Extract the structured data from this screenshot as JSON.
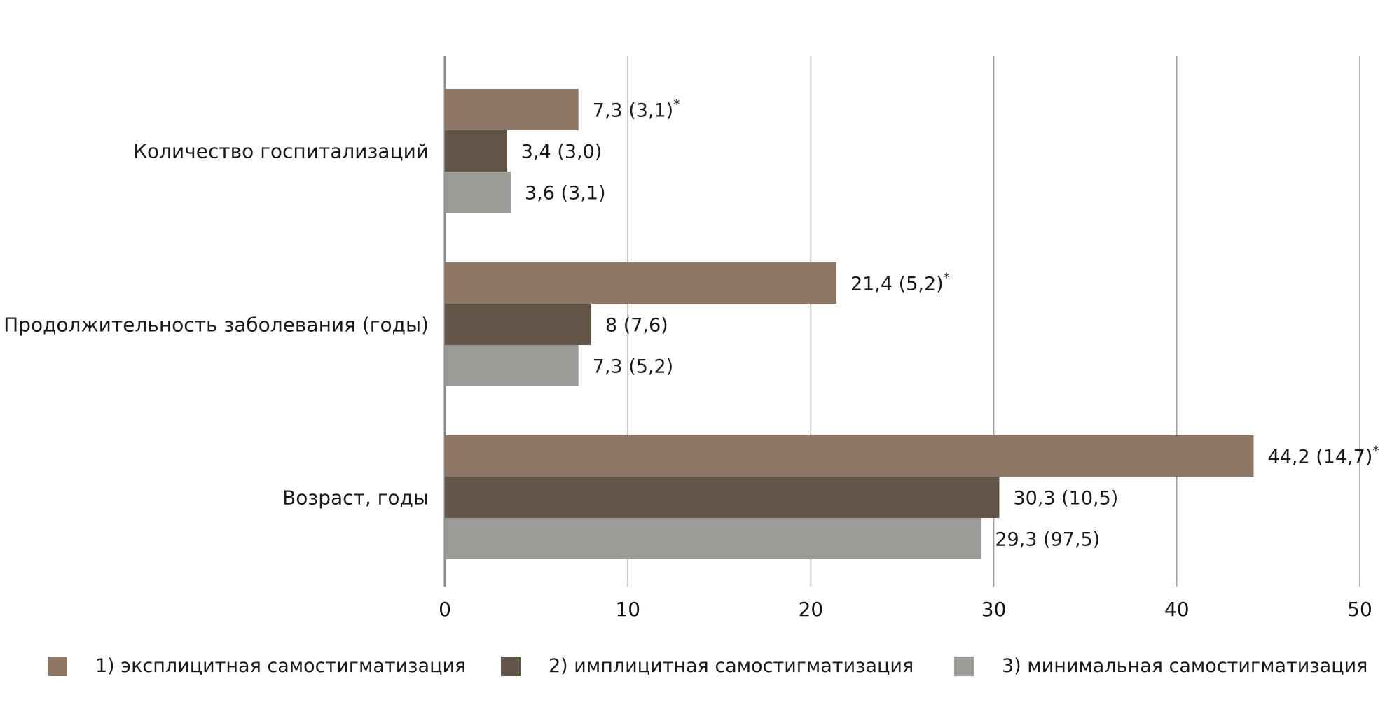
{
  "chart_data": {
    "type": "bar",
    "orientation": "horizontal",
    "categories": [
      "Количество госпитализаций",
      "Продолжительность заболевания (годы)",
      "Возраст, годы"
    ],
    "series": [
      {
        "name": "1) эксплицитная самостигматизация",
        "color": "#8e7765",
        "values": [
          7.3,
          21.4,
          44.2
        ],
        "labels": [
          "7,3 (3,1)",
          "21,4 (5,2)",
          "44,2 (14,7)"
        ],
        "marks": [
          "*",
          "*",
          "*"
        ]
      },
      {
        "name": "2) имплицитная самостигматизация",
        "color": "#625547",
        "values": [
          3.4,
          8,
          30.3
        ],
        "labels": [
          "3,4 (3,0)",
          "8 (7,6)",
          "30,3 (10,5)"
        ],
        "marks": [
          "",
          "",
          ""
        ]
      },
      {
        "name": "3) минимальная самостигматизация",
        "color": "#9c9d98",
        "values": [
          3.6,
          7.3,
          29.3
        ],
        "labels": [
          "3,6 (3,1)",
          "7,3 (5,2)",
          "29,3 (97,5)"
        ],
        "marks": [
          "",
          "",
          ""
        ]
      }
    ],
    "xlim": [
      0,
      50
    ],
    "xticks": [
      0,
      10,
      20,
      30,
      40,
      50
    ],
    "xtick_labels": [
      "0",
      "10",
      "20",
      "30",
      "40",
      "50"
    ],
    "grid": true,
    "legend_position": "bottom"
  }
}
